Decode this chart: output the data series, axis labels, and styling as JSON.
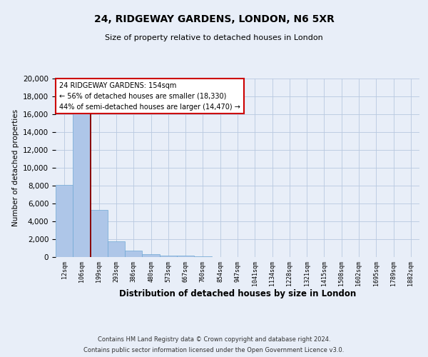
{
  "title": "24, RIDGEWAY GARDENS, LONDON, N6 5XR",
  "subtitle": "Size of property relative to detached houses in London",
  "xlabel": "Distribution of detached houses by size in London",
  "ylabel": "Number of detached properties",
  "categories": [
    "12sqm",
    "106sqm",
    "199sqm",
    "293sqm",
    "386sqm",
    "480sqm",
    "573sqm",
    "667sqm",
    "760sqm",
    "854sqm",
    "947sqm",
    "1041sqm",
    "1134sqm",
    "1228sqm",
    "1321sqm",
    "1415sqm",
    "1508sqm",
    "1602sqm",
    "1695sqm",
    "1789sqm",
    "1882sqm"
  ],
  "values": [
    8100,
    16500,
    5300,
    1800,
    750,
    300,
    200,
    150,
    100,
    0,
    0,
    0,
    0,
    0,
    0,
    0,
    0,
    0,
    0,
    0,
    0
  ],
  "bar_color": "#aec6e8",
  "bar_edge_color": "#6fa8d4",
  "vline_x": 1.5,
  "vline_color": "#8b0000",
  "annotation_title": "24 RIDGEWAY GARDENS: 154sqm",
  "annotation_line1": "← 56% of detached houses are smaller (18,330)",
  "annotation_line2": "44% of semi-detached houses are larger (14,470) →",
  "annotation_box_color": "#ffffff",
  "annotation_box_edge": "#cc0000",
  "ylim": [
    0,
    20000
  ],
  "yticks": [
    0,
    2000,
    4000,
    6000,
    8000,
    10000,
    12000,
    14000,
    16000,
    18000,
    20000
  ],
  "footer1": "Contains HM Land Registry data © Crown copyright and database right 2024.",
  "footer2": "Contains public sector information licensed under the Open Government Licence v3.0.",
  "bg_color": "#e8eef8",
  "grid_color": "#b8c8e0"
}
